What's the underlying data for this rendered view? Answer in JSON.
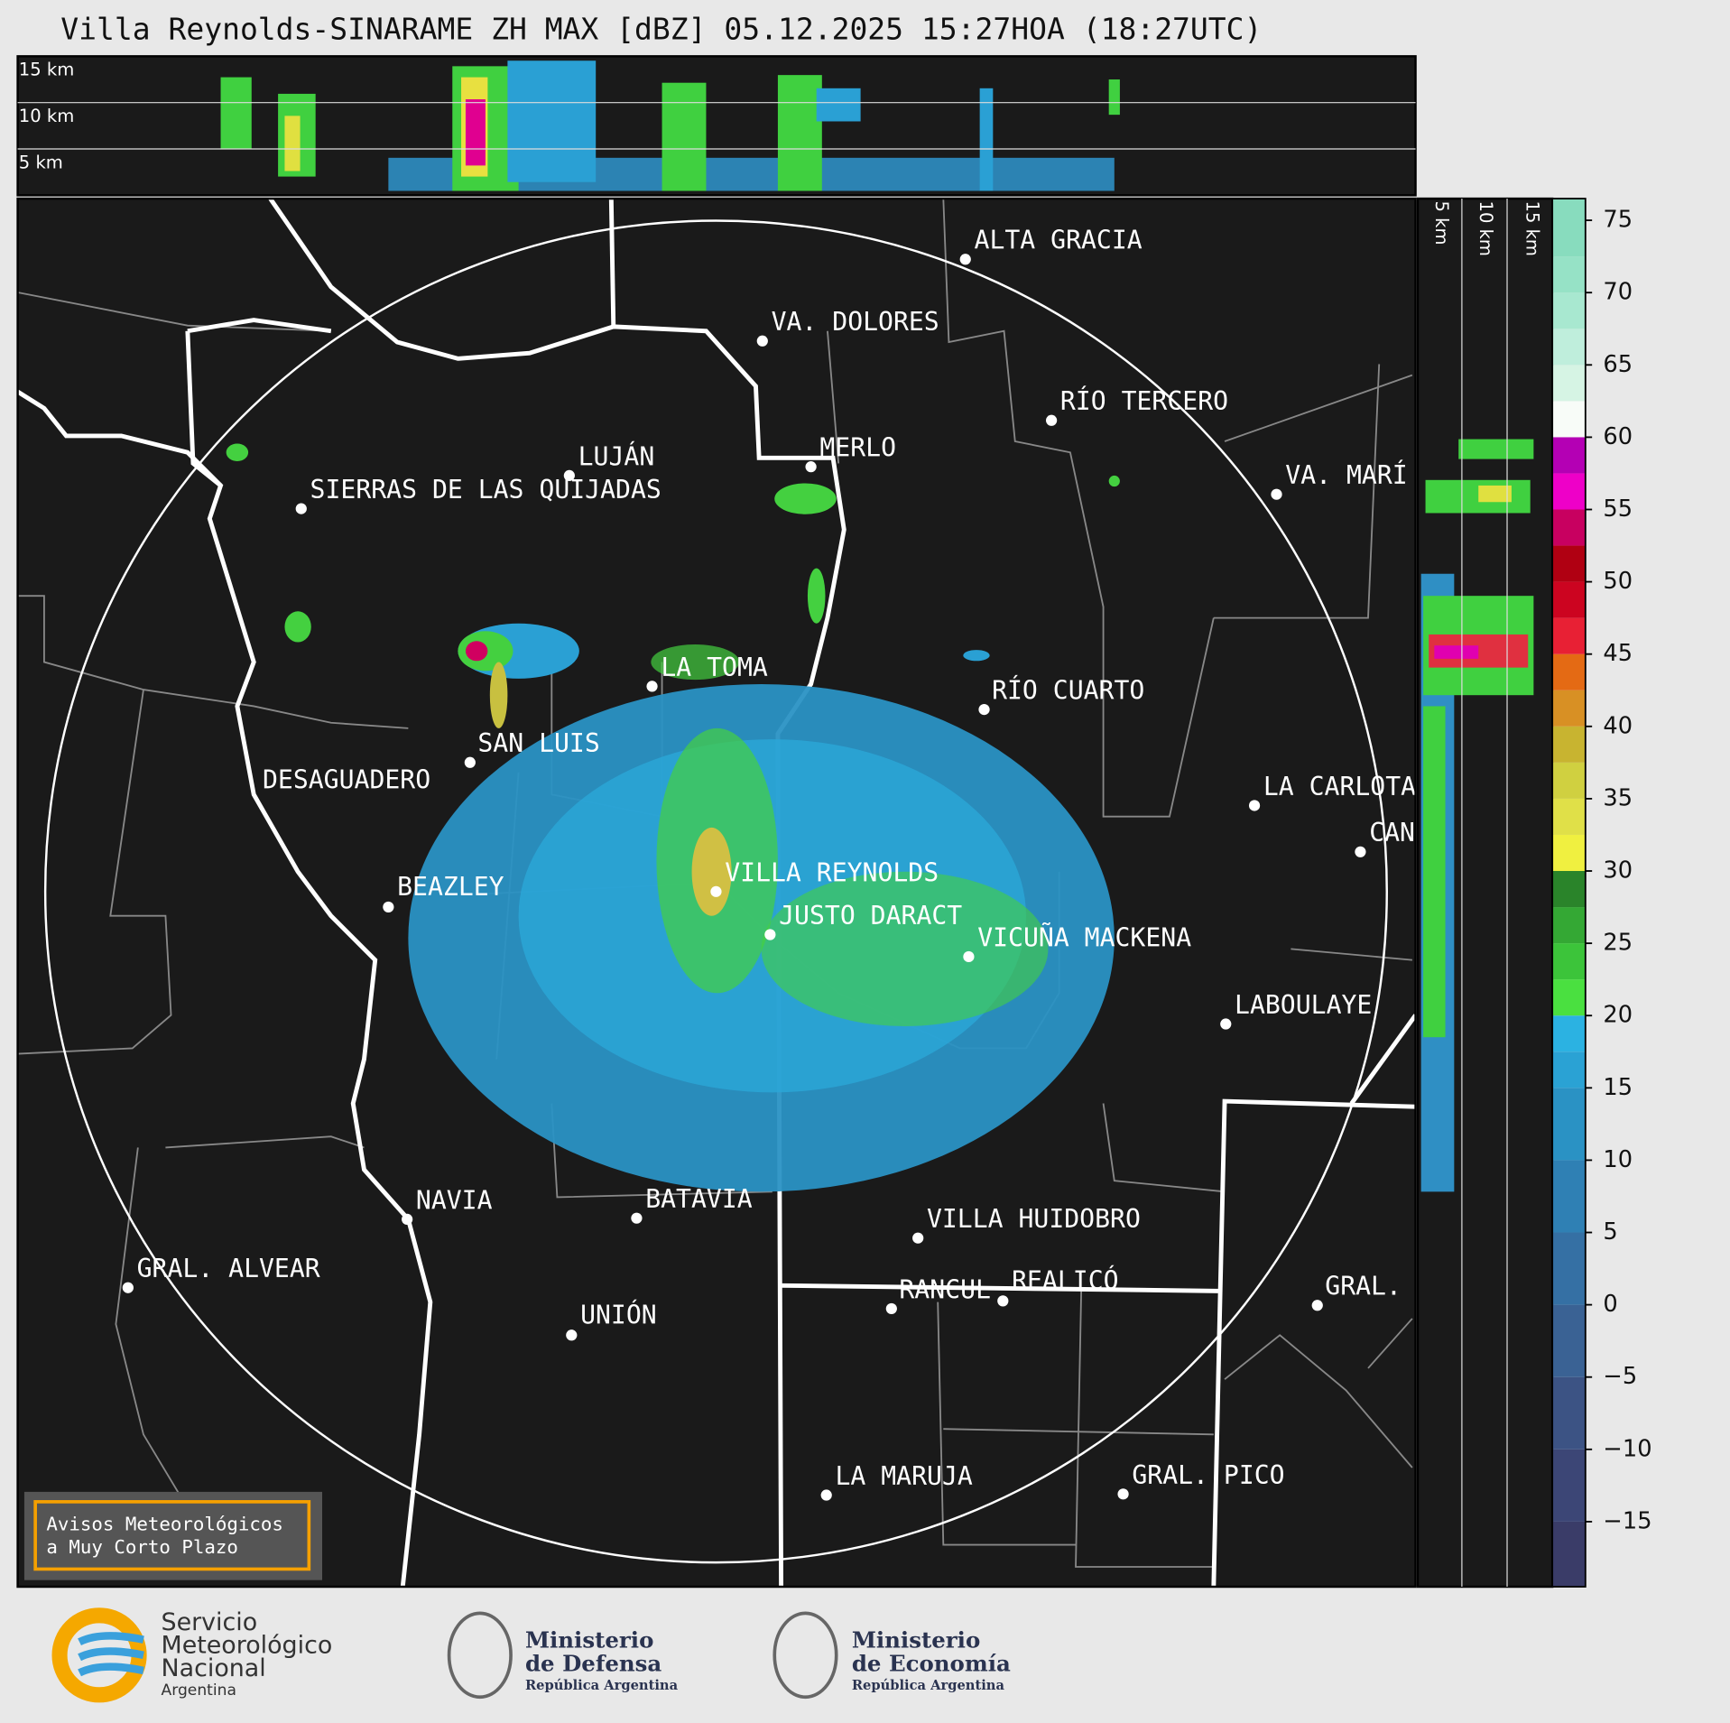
{
  "title": "Villa Reynolds-SINARAME ZH MAX [dBZ] 05.12.2025 15:27HOA (18:27UTC)",
  "top_panel_labels": [
    "15 km",
    "10 km",
    "5 km"
  ],
  "side_panel_labels": [
    "5 km",
    "10 km",
    "15 km"
  ],
  "cities": [
    "ALTA GRACIA",
    "VA. DOLORES",
    "RÍO TERCERO",
    "LUJÁN",
    "MERLO",
    "SIERRAS DE LAS QUIJADAS",
    "VA. MARÍ",
    "LA TOMA",
    "RÍO CUARTO",
    "SAN LUIS",
    "DESAGUADERO",
    "LA CARLOTA",
    "CAN",
    "VILLA REYNOLDS",
    "BEAZLEY",
    "JUSTO DARACT",
    "VICUÑA MACKENA",
    "LABOULAYE",
    "NAVIA",
    "BATAVIA",
    "VILLA HUIDOBRO",
    "GRAL. ALVEAR",
    "RANCUL",
    "REALICÓ",
    "GRAL.",
    "UNIÓN",
    "LA MARUJA",
    "GRAL. PICO"
  ],
  "colorbar": {
    "vlim": [
      -19.5,
      76.5
    ],
    "ticks": [
      75,
      70,
      65,
      60,
      55,
      50,
      45,
      40,
      35,
      30,
      25,
      20,
      15,
      10,
      5,
      0,
      {
        "value": -5,
        "label": "−5"
      },
      {
        "value": -10,
        "label": "−10"
      },
      {
        "value": -15,
        "label": "−15"
      }
    ],
    "bands": [
      [
        -19.5,
        "#3a3c68"
      ],
      [
        -15,
        "#3c4676"
      ],
      [
        -10,
        "#3c5384"
      ],
      [
        -5,
        "#3a6294"
      ],
      [
        0,
        "#3570a4"
      ],
      [
        5,
        "#2f80b4"
      ],
      [
        10,
        "#2a92c4"
      ],
      [
        15,
        "#2aa2d4"
      ],
      [
        17.5,
        "#2bb2e2"
      ],
      [
        20,
        "#4ae040"
      ],
      [
        22.5,
        "#3cc43a"
      ],
      [
        25,
        "#34a834"
      ],
      [
        27.5,
        "#2a842a"
      ],
      [
        30,
        "#f0f040"
      ],
      [
        32.5,
        "#e0e048"
      ],
      [
        35,
        "#d0d040"
      ],
      [
        37.5,
        "#c8b430"
      ],
      [
        40,
        "#d89024"
      ],
      [
        42.5,
        "#e46a14"
      ],
      [
        45,
        "#e82034"
      ],
      [
        47.5,
        "#cc0420"
      ],
      [
        50,
        "#b00012"
      ],
      [
        52.5,
        "#c80060"
      ],
      [
        55,
        "#ee00c8"
      ],
      [
        57.5,
        "#b400b4"
      ],
      [
        60,
        "#f8fcf8"
      ],
      [
        62.5,
        "#d6f4e4"
      ],
      [
        65,
        "#bfeedc"
      ],
      [
        67.5,
        "#a8e8d0"
      ],
      [
        70,
        "#96e2c6"
      ],
      [
        72.5,
        "#88dcbe"
      ]
    ]
  },
  "notice": [
    "Avisos Meteorológicos",
    "a Muy Corto Plazo"
  ],
  "logo_smn": [
    "Servicio",
    "Meteorológico",
    "Nacional",
    "Argentina"
  ],
  "logo_defensa": [
    "Ministerio",
    "de Defensa",
    "República Argentina"
  ],
  "logo_economia": [
    "Ministerio",
    "de Economía",
    "República Argentina"
  ]
}
